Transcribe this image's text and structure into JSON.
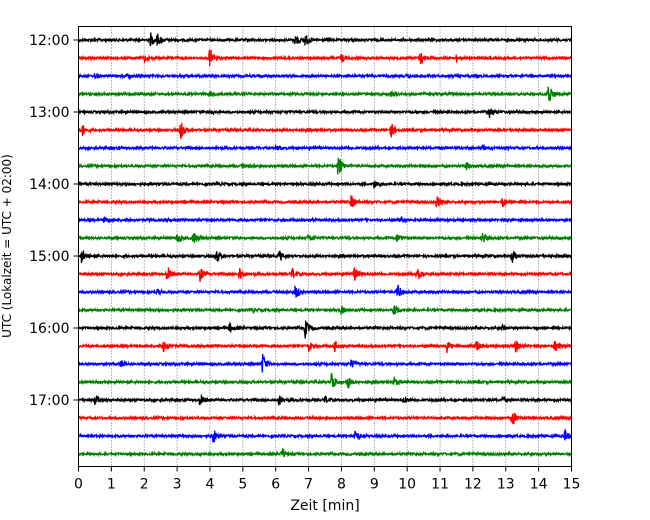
{
  "chart_data": {
    "type": "line",
    "title": "",
    "xlabel": "Zeit  [min]",
    "ylabel": "UTC (Lokalzeit = UTC + 02:00)",
    "xlim": [
      0,
      15
    ],
    "x_ticks": [
      0,
      1,
      2,
      3,
      4,
      5,
      6,
      7,
      8,
      9,
      10,
      11,
      12,
      13,
      14,
      15
    ],
    "y_ticks": [
      {
        "label": "12:00",
        "trace": 0
      },
      {
        "label": "13:00",
        "trace": 4
      },
      {
        "label": "14:00",
        "trace": 8
      },
      {
        "label": "15:00",
        "trace": 12
      },
      {
        "label": "16:00",
        "trace": 16
      },
      {
        "label": "17:00",
        "trace": 20
      }
    ],
    "vertical_grid": true,
    "color_cycle": [
      "#000000",
      "#ff0000",
      "#0000ff",
      "#008000"
    ],
    "traces": [
      {
        "start": "12:00",
        "events": [
          [
            2.2,
            0.5
          ],
          [
            2.4,
            0.4
          ],
          [
            6.6,
            0.5
          ],
          [
            6.9,
            0.4
          ]
        ]
      },
      {
        "start": "12:15",
        "events": [
          [
            2.0,
            0.3
          ],
          [
            4.0,
            0.8
          ],
          [
            8.0,
            0.3
          ],
          [
            10.4,
            0.5
          ],
          [
            11.5,
            0.2
          ]
        ]
      },
      {
        "start": "12:30",
        "events": [
          [
            0.5,
            0.15
          ],
          [
            1.5,
            0.2
          ],
          [
            10.0,
            0.15
          ]
        ]
      },
      {
        "start": "12:45",
        "events": [
          [
            4.0,
            0.2
          ],
          [
            9.5,
            0.2
          ],
          [
            14.3,
            0.9
          ]
        ]
      },
      {
        "start": "13:00",
        "events": [
          [
            4.0,
            0.2
          ],
          [
            12.5,
            0.4
          ]
        ]
      },
      {
        "start": "13:15",
        "events": [
          [
            0.1,
            0.5
          ],
          [
            3.1,
            0.8
          ],
          [
            9.5,
            0.6
          ]
        ]
      },
      {
        "start": "13:30",
        "events": [
          [
            6.0,
            0.15
          ],
          [
            12.3,
            0.15
          ]
        ]
      },
      {
        "start": "13:45",
        "events": [
          [
            7.9,
            1.0
          ],
          [
            11.8,
            0.25
          ],
          [
            5.0,
            0.15
          ]
        ]
      },
      {
        "start": "14:00",
        "events": [
          [
            4.2,
            0.15
          ],
          [
            9.0,
            0.3
          ]
        ]
      },
      {
        "start": "14:15",
        "events": [
          [
            8.3,
            0.5
          ],
          [
            10.9,
            0.5
          ],
          [
            12.9,
            0.4
          ]
        ]
      },
      {
        "start": "14:30",
        "events": [
          [
            0.8,
            0.3
          ],
          [
            9.8,
            0.2
          ]
        ]
      },
      {
        "start": "14:45",
        "events": [
          [
            3.0,
            0.4
          ],
          [
            3.5,
            0.45
          ],
          [
            7.0,
            0.3
          ],
          [
            9.7,
            0.3
          ],
          [
            12.3,
            0.4
          ]
        ]
      },
      {
        "start": "15:00",
        "events": [
          [
            0.1,
            0.6
          ],
          [
            4.2,
            0.5
          ],
          [
            6.1,
            0.4
          ],
          [
            13.2,
            0.5
          ]
        ]
      },
      {
        "start": "15:15",
        "events": [
          [
            2.7,
            0.6
          ],
          [
            3.7,
            0.5
          ],
          [
            4.9,
            0.55
          ],
          [
            6.5,
            0.45
          ],
          [
            8.4,
            0.5
          ],
          [
            10.3,
            0.6
          ]
        ]
      },
      {
        "start": "15:30",
        "events": [
          [
            2.4,
            0.3
          ],
          [
            6.6,
            0.5
          ],
          [
            9.7,
            0.6
          ]
        ]
      },
      {
        "start": "15:45",
        "events": [
          [
            8.0,
            0.3
          ],
          [
            9.6,
            0.5
          ],
          [
            5.3,
            0.15
          ]
        ]
      },
      {
        "start": "16:00",
        "events": [
          [
            4.6,
            0.35
          ],
          [
            6.9,
            0.7
          ],
          [
            12.9,
            0.2
          ]
        ]
      },
      {
        "start": "16:15",
        "events": [
          [
            2.6,
            0.55
          ],
          [
            7.0,
            0.4
          ],
          [
            7.8,
            0.4
          ],
          [
            11.2,
            0.5
          ],
          [
            12.1,
            0.4
          ],
          [
            13.3,
            0.45
          ],
          [
            14.5,
            0.45
          ]
        ]
      },
      {
        "start": "16:30",
        "events": [
          [
            1.3,
            0.3
          ],
          [
            5.6,
            0.8
          ],
          [
            8.3,
            0.3
          ]
        ]
      },
      {
        "start": "16:45",
        "events": [
          [
            7.7,
            0.8
          ],
          [
            8.2,
            0.45
          ],
          [
            9.6,
            0.3
          ]
        ]
      },
      {
        "start": "17:00",
        "events": [
          [
            0.5,
            0.4
          ],
          [
            3.7,
            0.5
          ],
          [
            6.1,
            0.35
          ],
          [
            7.5,
            0.3
          ],
          [
            9.9,
            0.2
          ],
          [
            12.9,
            0.2
          ]
        ]
      },
      {
        "start": "17:15",
        "events": [
          [
            13.2,
            0.6
          ]
        ]
      },
      {
        "start": "17:30",
        "events": [
          [
            4.1,
            0.55
          ],
          [
            8.4,
            0.55
          ],
          [
            14.8,
            0.45
          ]
        ]
      },
      {
        "start": "17:45",
        "events": [
          [
            6.2,
            0.45
          ]
        ]
      }
    ]
  }
}
